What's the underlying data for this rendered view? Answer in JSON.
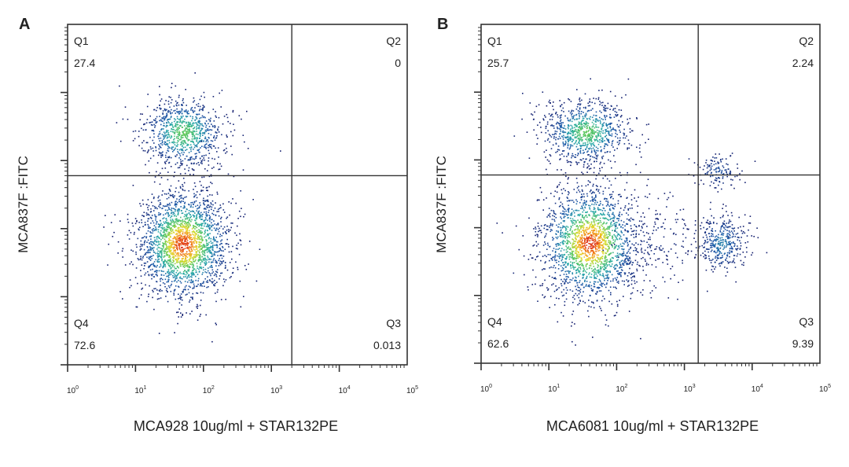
{
  "chart_data": [
    {
      "type": "scatter",
      "panel_label": "A",
      "xlabel": "MCA928 10ug/ml + STAR132PE",
      "ylabel": "MCA837F :FITC",
      "x_scale": "log",
      "y_scale": "log",
      "xlim": [
        1,
        100000
      ],
      "ylim": [
        1,
        100000
      ],
      "x_ticks": [
        {
          "base": "10",
          "exp": "0"
        },
        {
          "base": "10",
          "exp": "1"
        },
        {
          "base": "10",
          "exp": "2"
        },
        {
          "base": "10",
          "exp": "3"
        },
        {
          "base": "10",
          "exp": "4"
        },
        {
          "base": "10",
          "exp": "5"
        }
      ],
      "gate": {
        "x": 2000,
        "y": 600
      },
      "quadrants": [
        {
          "name": "Q1",
          "value": "27.4",
          "position": "top-left"
        },
        {
          "name": "Q2",
          "value": "0",
          "position": "top-right"
        },
        {
          "name": "Q3",
          "value": "0.013",
          "position": "bottom-right"
        },
        {
          "name": "Q4",
          "value": "72.6",
          "position": "bottom-left"
        }
      ],
      "populations": [
        {
          "cx": 50,
          "cy": 2600,
          "sx_dec": 0.3,
          "sy_dec": 0.26,
          "n": 900,
          "peak": 0.65
        },
        {
          "cx": 50,
          "cy": 60,
          "sx_dec": 0.34,
          "sy_dec": 0.4,
          "n": 2200,
          "peak": 1.0
        }
      ]
    },
    {
      "type": "scatter",
      "panel_label": "B",
      "xlabel": "MCA6081 10ug/ml + STAR132PE",
      "ylabel": "MCA837F :FITC",
      "x_scale": "log",
      "y_scale": "log",
      "xlim": [
        1,
        100000
      ],
      "ylim": [
        1,
        100000
      ],
      "x_ticks": [
        {
          "base": "10",
          "exp": "0"
        },
        {
          "base": "10",
          "exp": "1"
        },
        {
          "base": "10",
          "exp": "2"
        },
        {
          "base": "10",
          "exp": "3"
        },
        {
          "base": "10",
          "exp": "4"
        },
        {
          "base": "10",
          "exp": "5"
        }
      ],
      "gate": {
        "x": 1600,
        "y": 600
      },
      "quadrants": [
        {
          "name": "Q1",
          "value": "25.7",
          "position": "top-left"
        },
        {
          "name": "Q2",
          "value": "2.24",
          "position": "top-right"
        },
        {
          "name": "Q3",
          "value": "9.39",
          "position": "bottom-right"
        },
        {
          "name": "Q4",
          "value": "62.6",
          "position": "bottom-left"
        }
      ],
      "populations": [
        {
          "cx": 35,
          "cy": 2600,
          "sx_dec": 0.32,
          "sy_dec": 0.24,
          "n": 900,
          "peak": 0.65
        },
        {
          "cx": 40,
          "cy": 60,
          "sx_dec": 0.36,
          "sy_dec": 0.42,
          "n": 2000,
          "peak": 1.0
        },
        {
          "cx": 3500,
          "cy": 60,
          "sx_dec": 0.18,
          "sy_dec": 0.22,
          "n": 380,
          "peak": 0.35
        },
        {
          "cx": 3000,
          "cy": 700,
          "sx_dec": 0.16,
          "sy_dec": 0.14,
          "n": 130,
          "peak": 0.2
        },
        {
          "cx": 400,
          "cy": 60,
          "sx_dec": 0.35,
          "sy_dec": 0.3,
          "n": 160,
          "peak": 0.08
        }
      ]
    }
  ]
}
